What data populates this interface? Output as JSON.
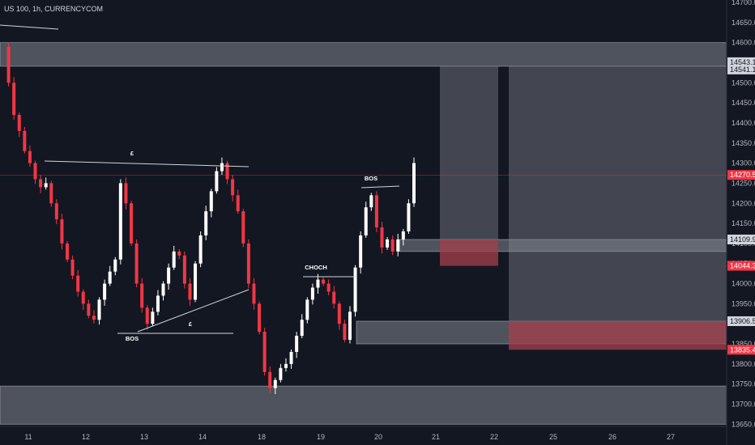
{
  "header": {
    "title": "US 100, 1h, CURRENCYCOM"
  },
  "colors": {
    "background": "#131722",
    "up": "#ffffff",
    "down": "#f23645",
    "zone": "#d1d4dc",
    "box": "#868993",
    "red_box": "#b22833",
    "badge_red": "#f23645",
    "badge_light": "#d1d4dc",
    "axis_text": "#b2b5be"
  },
  "chart_data": {
    "type": "candlestick",
    "title": "US 100, 1h, CURRENCYCOM",
    "y_axis": {
      "position": "right",
      "ticks": [
        14700.0,
        14650.0,
        14600.0,
        14550.0,
        14500.0,
        14450.0,
        14400.0,
        14350.0,
        14300.0,
        14250.0,
        14200.0,
        14150.0,
        14100.0,
        14050.0,
        14000.0,
        13950.0,
        13900.0,
        13850.0,
        13800.0,
        13750.0,
        13700.0,
        13650.0
      ],
      "tick_labels": [
        "14700.0",
        "14650.0",
        "14600.0",
        "14550.0",
        "14500.0",
        "14450.0",
        "14400.0",
        "14350.0",
        "14300.0",
        "14250.0",
        "14200.0",
        "14150.0",
        "14100.0",
        "14050.0",
        "14000.0",
        "13950.0",
        "13900.0",
        "13850.0",
        "13800.0",
        "13750.0",
        "13700.0",
        "13650.0"
      ],
      "range": [
        13650,
        14700
      ]
    },
    "x_axis": {
      "ticks": [
        11,
        12,
        13,
        14,
        18,
        19,
        20,
        21,
        22,
        25,
        26,
        27
      ],
      "tick_labels": [
        "11",
        "12",
        "13",
        "14",
        "18",
        "19",
        "20",
        "21",
        "22",
        "25",
        "26",
        "27"
      ]
    },
    "price_badges": [
      {
        "value": 14543.1,
        "label": "14543.1",
        "style": "light"
      },
      {
        "value": 14541.1,
        "label": "14541.1",
        "style": "light"
      },
      {
        "value": 14270.5,
        "label": "14270.5",
        "style": "red"
      },
      {
        "value": 14109.9,
        "label": "14109.9",
        "style": "light"
      },
      {
        "value": 14044.3,
        "label": "14044.3",
        "style": "red"
      },
      {
        "value": 13906.5,
        "label": "13906.5",
        "style": "light"
      },
      {
        "value": 13835.4,
        "label": "13835.4",
        "style": "red"
      }
    ],
    "current_price": 14270.5,
    "close_series": [
      14590,
      14500,
      14420,
      14380,
      14330,
      14300,
      14260,
      14240,
      14250,
      14200,
      14160,
      14100,
      14060,
      14020,
      13980,
      13950,
      13920,
      13910,
      13960,
      14000,
      14030,
      14060,
      14250,
      14200,
      14100,
      14000,
      13940,
      13900,
      13930,
      13970,
      14000,
      14040,
      14080,
      14070,
      14000,
      13960,
      14050,
      14120,
      14180,
      14230,
      14280,
      14300,
      14260,
      14220,
      14180,
      14100,
      14000,
      13950,
      13880,
      13780,
      13740,
      13760,
      13790,
      13800,
      13830,
      13870,
      13910,
      13960,
      13990,
      14010,
      14000,
      13980,
      13950,
      13900,
      13860,
      13930,
      14040,
      14120,
      14190,
      14220,
      14140,
      14090,
      14110,
      14080,
      14110,
      14130,
      14200,
      14300
    ],
    "zones": [
      {
        "low": 14541.1,
        "high": 14600
      },
      {
        "low": 14080,
        "high": 14109.9
      },
      {
        "low": 13850,
        "high": 13906.5
      },
      {
        "low": 13650,
        "high": 13745
      }
    ],
    "boxes": [
      {
        "low": 14044.3,
        "high": 14541.1,
        "highlight_low": 14044.3,
        "highlight_high": 14109.9
      },
      {
        "low": 13835.4,
        "high": 14541.1,
        "highlight_low": 13835.4,
        "highlight_high": 13906.5
      }
    ],
    "annotations": [
      {
        "label": "£"
      },
      {
        "label": "£"
      },
      {
        "label": "BOS"
      },
      {
        "label": "BOS"
      },
      {
        "label": "CHOCH"
      }
    ]
  }
}
